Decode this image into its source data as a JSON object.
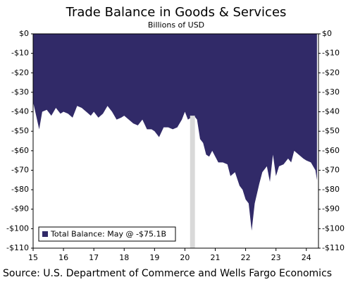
{
  "chart_data": {
    "type": "area",
    "title": "Trade Balance in Goods & Services",
    "subtitle": "Billions of USD",
    "source": "Source: U.S. Department of Commerce and Wells Fargo Economics",
    "x": [
      15.0,
      15.1,
      15.2,
      15.3,
      15.45,
      15.6,
      15.75,
      15.9,
      16.0,
      16.15,
      16.3,
      16.45,
      16.6,
      16.75,
      16.9,
      17.0,
      17.15,
      17.3,
      17.45,
      17.6,
      17.75,
      17.9,
      18.0,
      18.15,
      18.3,
      18.45,
      18.6,
      18.75,
      18.9,
      19.0,
      19.15,
      19.3,
      19.45,
      19.6,
      19.75,
      19.9,
      20.0,
      20.1,
      20.2,
      20.3,
      20.4,
      20.5,
      20.6,
      20.7,
      20.8,
      20.9,
      21.0,
      21.1,
      21.25,
      21.4,
      21.5,
      21.65,
      21.8,
      21.9,
      22.0,
      22.1,
      22.2,
      22.3,
      22.45,
      22.55,
      22.7,
      22.8,
      22.9,
      23.0,
      23.1,
      23.25,
      23.4,
      23.5,
      23.6,
      23.75,
      23.9,
      24.0,
      24.15,
      24.3,
      24.35
    ],
    "series": [
      {
        "name": "Total Balance: May @ -$75.1B",
        "color": "#312a68",
        "values": [
          -35,
          -42,
          -49,
          -40,
          -39,
          -42,
          -38,
          -41,
          -40,
          -41,
          -43,
          -37,
          -38,
          -40,
          -42,
          -40,
          -43,
          -41,
          -37,
          -40,
          -44,
          -43,
          -42,
          -44,
          -46,
          -47,
          -44,
          -49,
          -49,
          -50,
          -53,
          -48,
          -48,
          -49,
          -48,
          -44,
          -40,
          -44,
          -43,
          -42,
          -44,
          -54,
          -56,
          -62,
          -63,
          -60,
          -63,
          -66,
          -66,
          -67,
          -73,
          -71,
          -78,
          -80,
          -85,
          -87,
          -101,
          -87,
          -77,
          -71,
          -68,
          -76,
          -62,
          -73,
          -68,
          -67,
          -64,
          -66,
          -60,
          -62,
          -64,
          -65,
          -66,
          -70,
          -75.1
        ]
      }
    ],
    "recession": [
      20.17,
      20.33
    ],
    "xlim": [
      15,
      24.4
    ],
    "xticks": [
      15,
      16,
      17,
      18,
      19,
      20,
      21,
      22,
      23,
      24
    ],
    "ylim": [
      -110,
      0
    ],
    "yticks": [
      {
        "value": 0,
        "label": "$0"
      },
      {
        "value": -10,
        "label": "-$10"
      },
      {
        "value": -20,
        "label": "-$20"
      },
      {
        "value": -30,
        "label": "-$30"
      },
      {
        "value": -40,
        "label": "-$40"
      },
      {
        "value": -50,
        "label": "-$50"
      },
      {
        "value": -60,
        "label": "-$60"
      },
      {
        "value": -70,
        "label": "-$70"
      },
      {
        "value": -80,
        "label": "-$80"
      },
      {
        "value": -90,
        "label": "-$90"
      },
      {
        "value": -100,
        "label": "-$100"
      },
      {
        "value": -110,
        "label": "-$110"
      }
    ],
    "legend": "lower left"
  }
}
